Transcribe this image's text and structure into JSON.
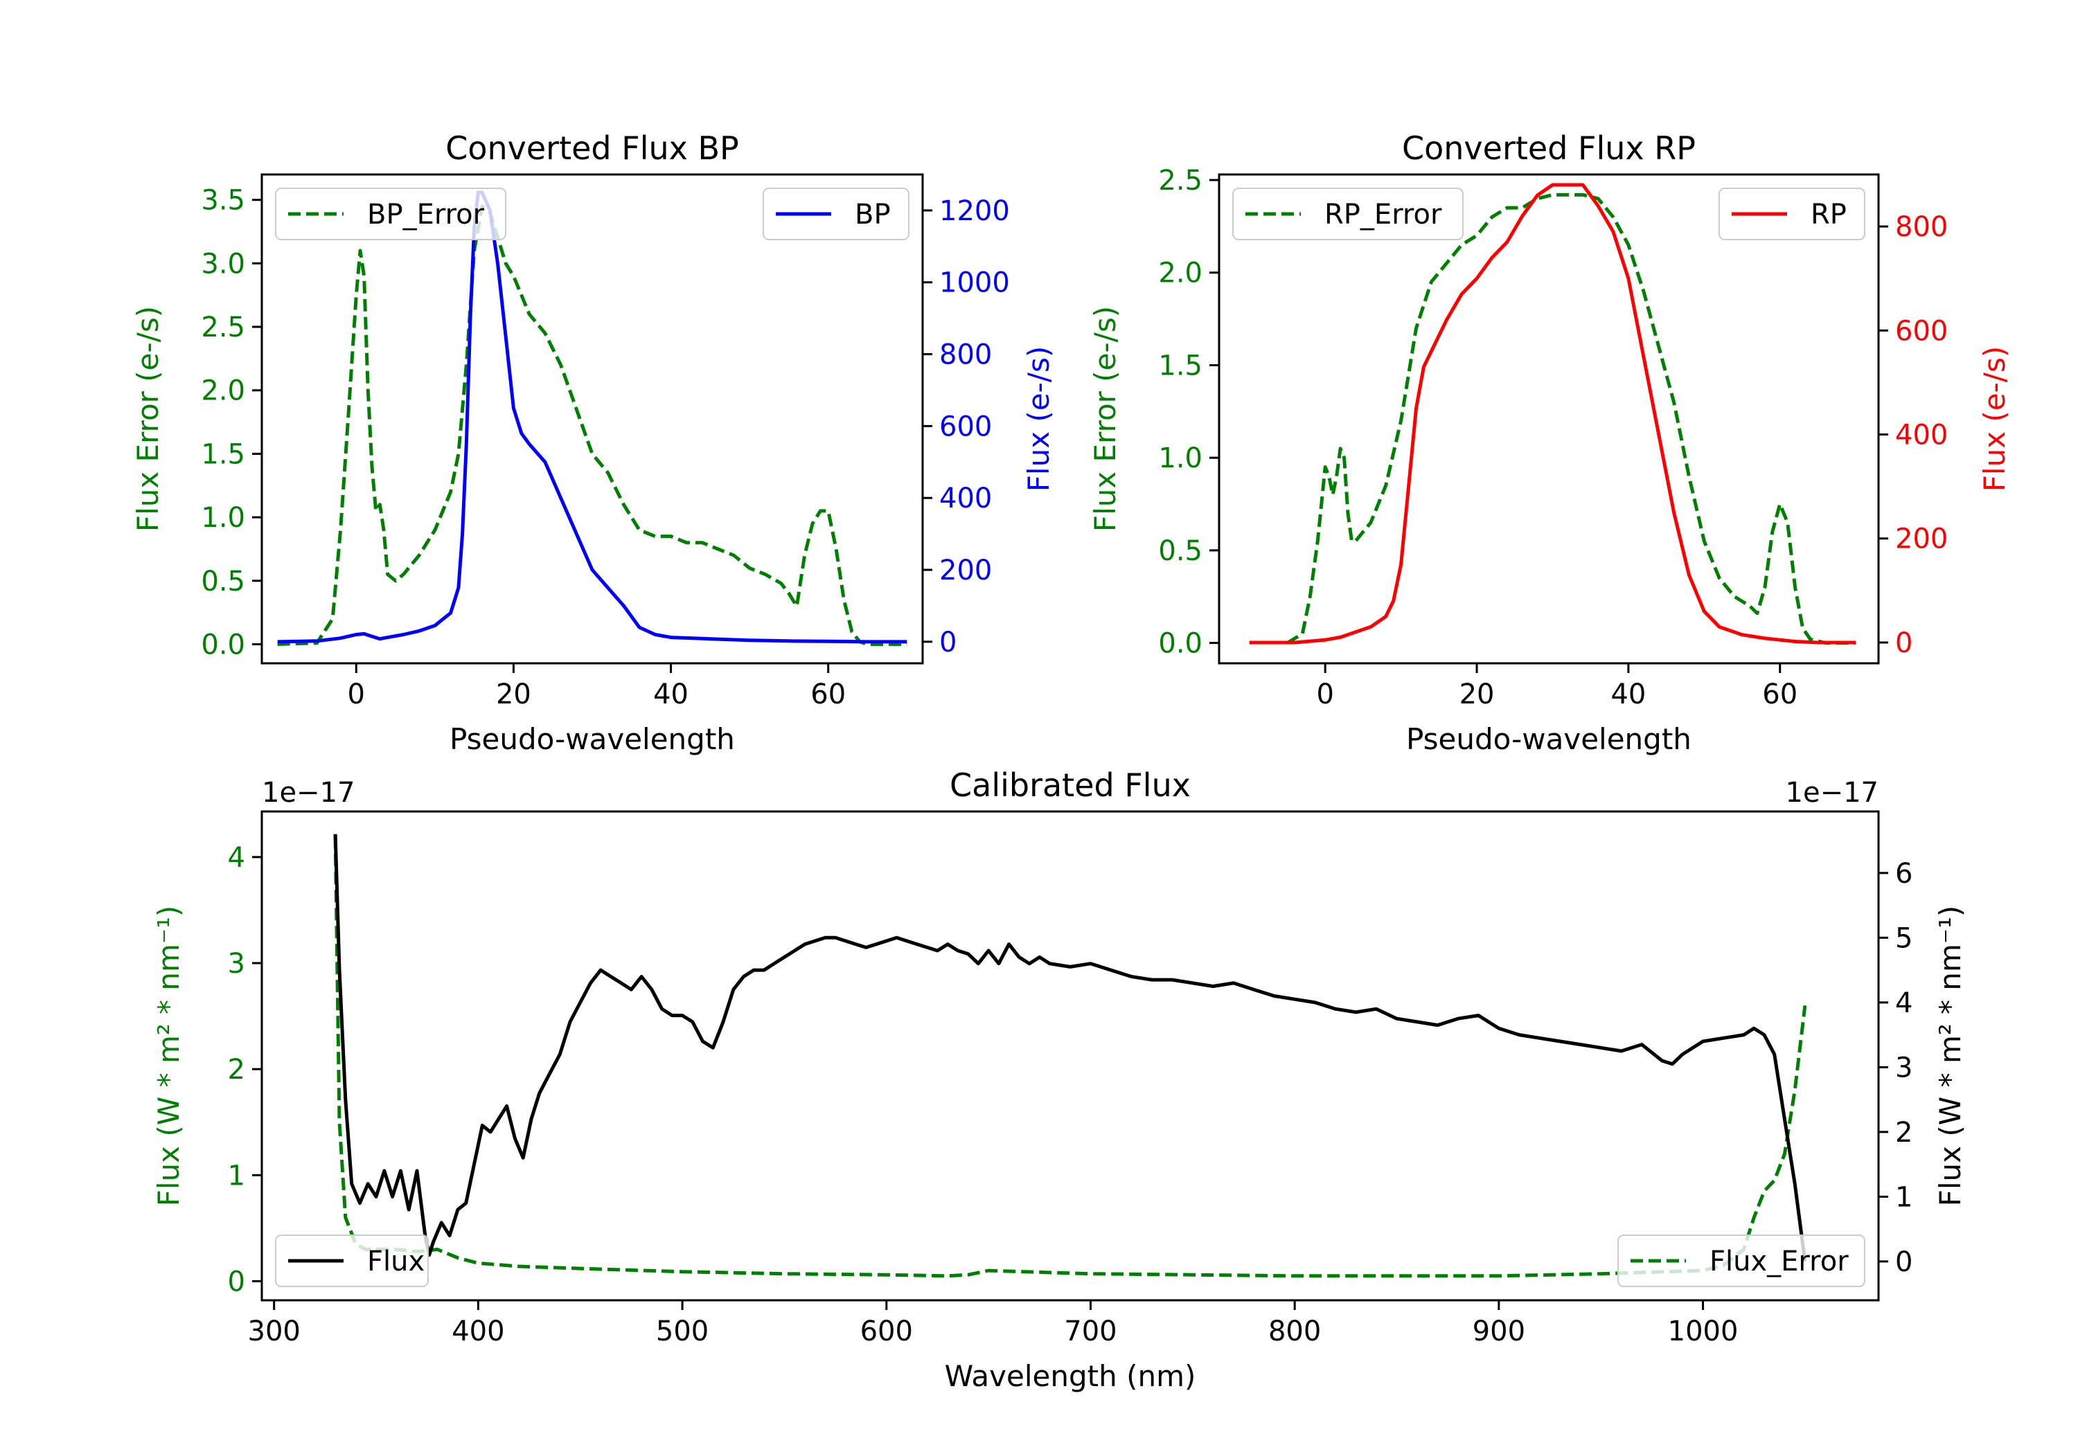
{
  "chart_data": [
    {
      "id": "bp",
      "type": "line",
      "title": "Converted Flux BP",
      "xlabel": "Pseudo-wavelength",
      "ylabel_left": "Flux Error (e-/s)",
      "ylabel_right": "Flux (e-/s)",
      "xlim": [
        -12,
        72
      ],
      "ylim_left": [
        -0.15,
        3.7
      ],
      "ylim_right": [
        -60,
        1300
      ],
      "xticks": [
        0,
        20,
        40,
        60
      ],
      "yticks_left": [
        "0.0",
        "0.5",
        "1.0",
        "1.5",
        "2.0",
        "2.5",
        "3.0",
        "3.5"
      ],
      "yticks_right": [
        "0",
        "200",
        "400",
        "600",
        "800",
        "1000",
        "1200"
      ],
      "legend_left": {
        "label": "BP_Error",
        "placement": "upper-left"
      },
      "legend_right": {
        "label": "BP",
        "placement": "upper-right"
      },
      "colors": {
        "error": "#008000",
        "flux": "#0000ff",
        "left_axis": "#008000",
        "right_axis": "#0000ff"
      },
      "series": [
        {
          "name": "BP_Error",
          "axis": "left",
          "style": "dashed",
          "x": [
            -10,
            -5,
            -3,
            -2,
            -1,
            0,
            0.5,
            1,
            1.5,
            2,
            2.5,
            3,
            3.5,
            4,
            5,
            6,
            8,
            10,
            12,
            13,
            14,
            15,
            16,
            17,
            18,
            19,
            20,
            22,
            24,
            26,
            28,
            30,
            32,
            34,
            36,
            38,
            40,
            42,
            44,
            46,
            48,
            50,
            52,
            54,
            55,
            56,
            57,
            58,
            59,
            60,
            61,
            62,
            63,
            64,
            65,
            70
          ],
          "y": [
            0.0,
            0.01,
            0.2,
            0.9,
            1.8,
            2.75,
            3.1,
            2.9,
            2.0,
            1.4,
            1.05,
            1.1,
            0.9,
            0.55,
            0.5,
            0.55,
            0.7,
            0.9,
            1.2,
            1.5,
            2.2,
            3.1,
            3.45,
            3.4,
            3.2,
            3.0,
            2.9,
            2.6,
            2.45,
            2.2,
            1.85,
            1.5,
            1.35,
            1.1,
            0.9,
            0.85,
            0.85,
            0.8,
            0.8,
            0.75,
            0.7,
            0.6,
            0.55,
            0.48,
            0.4,
            0.3,
            0.7,
            0.95,
            1.05,
            1.05,
            0.75,
            0.35,
            0.1,
            0.02,
            0.0,
            0.0
          ]
        },
        {
          "name": "BP",
          "axis": "right",
          "style": "solid",
          "x": [
            -10,
            -5,
            -2,
            0,
            1,
            2,
            3,
            4,
            6,
            8,
            10,
            12,
            13,
            13.5,
            14,
            14.5,
            15,
            15.5,
            16,
            17,
            18,
            19,
            20,
            21,
            22,
            24,
            26,
            28,
            30,
            32,
            34,
            36,
            38,
            40,
            45,
            50,
            55,
            60,
            65,
            70
          ],
          "y": [
            0,
            2,
            10,
            20,
            22,
            15,
            8,
            12,
            20,
            30,
            45,
            80,
            150,
            300,
            550,
            900,
            1150,
            1250,
            1250,
            1200,
            1050,
            850,
            650,
            580,
            550,
            500,
            400,
            300,
            200,
            150,
            100,
            40,
            20,
            12,
            8,
            4,
            2,
            1,
            0,
            0
          ]
        }
      ]
    },
    {
      "id": "rp",
      "type": "line",
      "title": "Converted Flux RP",
      "xlabel": "Pseudo-wavelength",
      "ylabel_left": "Flux Error (e-/s)",
      "ylabel_right": "Flux (e-/s)",
      "xlim": [
        -14,
        73
      ],
      "ylim_left": [
        -0.11,
        2.53
      ],
      "ylim_right": [
        -40,
        900
      ],
      "xticks": [
        0,
        20,
        40,
        60
      ],
      "yticks_left": [
        "0.0",
        "0.5",
        "1.0",
        "1.5",
        "2.0",
        "2.5"
      ],
      "yticks_right": [
        "0",
        "200",
        "400",
        "600",
        "800"
      ],
      "legend_left": {
        "label": "RP_Error",
        "placement": "upper-left"
      },
      "legend_right": {
        "label": "RP",
        "placement": "upper-right"
      },
      "colors": {
        "error": "#008000",
        "flux": "#ff0000",
        "left_axis": "#008000",
        "right_axis": "#ff0000"
      },
      "series": [
        {
          "name": "RP_Error",
          "axis": "left",
          "style": "dashed",
          "x": [
            -5,
            -3,
            -2,
            -1,
            0,
            0.5,
            1,
            1.5,
            2,
            2.5,
            3,
            3.5,
            4,
            5,
            6,
            8,
            10,
            12,
            14,
            16,
            18,
            20,
            22,
            24,
            26,
            28,
            30,
            32,
            34,
            36,
            38,
            40,
            42,
            44,
            46,
            48,
            50,
            52,
            54,
            56,
            57,
            58,
            59,
            60,
            61,
            62,
            63,
            64,
            66,
            70
          ],
          "y": [
            0.0,
            0.05,
            0.25,
            0.55,
            0.95,
            0.9,
            0.8,
            0.9,
            1.05,
            1.0,
            0.7,
            0.55,
            0.55,
            0.6,
            0.65,
            0.85,
            1.2,
            1.7,
            1.95,
            2.05,
            2.15,
            2.2,
            2.3,
            2.35,
            2.35,
            2.4,
            2.42,
            2.42,
            2.42,
            2.4,
            2.3,
            2.15,
            1.9,
            1.6,
            1.3,
            0.9,
            0.55,
            0.35,
            0.25,
            0.2,
            0.16,
            0.3,
            0.6,
            0.75,
            0.65,
            0.3,
            0.08,
            0.02,
            0.0,
            0.0
          ]
        },
        {
          "name": "RP",
          "axis": "right",
          "style": "solid",
          "x": [
            -10,
            -4,
            0,
            2,
            4,
            6,
            8,
            9,
            10,
            11,
            12,
            13,
            14,
            16,
            18,
            20,
            22,
            24,
            26,
            28,
            30,
            32,
            34,
            36,
            38,
            40,
            42,
            44,
            46,
            48,
            50,
            52,
            55,
            58,
            60,
            62,
            65,
            70
          ],
          "y": [
            0,
            0,
            5,
            10,
            20,
            30,
            50,
            80,
            150,
            300,
            450,
            530,
            560,
            620,
            670,
            700,
            740,
            770,
            820,
            860,
            880,
            880,
            880,
            840,
            790,
            700,
            550,
            400,
            250,
            130,
            60,
            30,
            15,
            8,
            5,
            2,
            0,
            0
          ]
        }
      ]
    },
    {
      "id": "cal",
      "type": "line",
      "title": "Calibrated Flux",
      "xlabel": "Wavelength (nm)",
      "ylabel_left": "Flux (W * m² * nm⁻¹)",
      "ylabel_right": "Flux (W * m² * nm⁻¹)",
      "offset_left": "1e−17",
      "offset_right": "1e−17",
      "xlim": [
        294,
        1086
      ],
      "ylim_left": [
        -0.18,
        4.43
      ],
      "ylim_right": [
        -0.6,
        6.95
      ],
      "xticks": [
        300,
        400,
        500,
        600,
        700,
        800,
        900,
        1000
      ],
      "yticks_left": [
        "0",
        "1",
        "2",
        "3",
        "4"
      ],
      "yticks_right": [
        "0",
        "1",
        "2",
        "3",
        "4",
        "5",
        "6"
      ],
      "legend_left": {
        "label": "Flux",
        "placement": "lower-left"
      },
      "legend_right": {
        "label": "Flux_Error",
        "placement": "lower-right"
      },
      "colors": {
        "error": "#008000",
        "flux": "#000000",
        "left_axis": "#008000",
        "right_axis": "#000000"
      },
      "series": [
        {
          "name": "Flux_Error",
          "axis": "left",
          "style": "dashed",
          "x": [
            330,
            332,
            335,
            340,
            345,
            350,
            360,
            370,
            380,
            390,
            400,
            420,
            450,
            500,
            550,
            600,
            630,
            640,
            650,
            700,
            750,
            800,
            850,
            900,
            950,
            1000,
            1010,
            1020,
            1025,
            1030,
            1035,
            1040,
            1045,
            1050
          ],
          "y": [
            4.2,
            1.5,
            0.6,
            0.35,
            0.3,
            0.3,
            0.3,
            0.28,
            0.3,
            0.22,
            0.17,
            0.14,
            0.12,
            0.09,
            0.07,
            0.06,
            0.05,
            0.06,
            0.1,
            0.07,
            0.06,
            0.05,
            0.05,
            0.05,
            0.07,
            0.1,
            0.15,
            0.3,
            0.6,
            0.85,
            0.95,
            1.2,
            1.8,
            2.6
          ]
        },
        {
          "name": "Flux",
          "axis": "right",
          "style": "solid",
          "x": [
            330,
            332,
            335,
            338,
            342,
            346,
            350,
            354,
            358,
            362,
            366,
            370,
            374,
            376,
            378,
            382,
            386,
            390,
            394,
            398,
            402,
            406,
            410,
            414,
            418,
            422,
            426,
            430,
            435,
            440,
            445,
            450,
            455,
            460,
            465,
            470,
            475,
            480,
            485,
            490,
            495,
            500,
            505,
            510,
            515,
            520,
            525,
            530,
            535,
            540,
            545,
            550,
            555,
            560,
            565,
            570,
            575,
            580,
            585,
            590,
            595,
            600,
            605,
            610,
            615,
            620,
            625,
            630,
            635,
            640,
            645,
            650,
            655,
            660,
            665,
            670,
            675,
            680,
            690,
            700,
            710,
            720,
            730,
            740,
            750,
            760,
            770,
            780,
            790,
            800,
            810,
            820,
            830,
            840,
            850,
            860,
            870,
            880,
            890,
            900,
            910,
            920,
            930,
            940,
            950,
            960,
            970,
            980,
            985,
            990,
            1000,
            1010,
            1020,
            1025,
            1030,
            1035,
            1040,
            1045,
            1050
          ],
          "y": [
            6.6,
            4.5,
            2.5,
            1.2,
            0.9,
            1.2,
            1.0,
            1.4,
            1.0,
            1.4,
            0.8,
            1.4,
            0.4,
            0.1,
            0.3,
            0.6,
            0.4,
            0.8,
            0.9,
            1.5,
            2.1,
            2.0,
            2.2,
            2.4,
            1.9,
            1.6,
            2.2,
            2.6,
            2.9,
            3.2,
            3.7,
            4.0,
            4.3,
            4.5,
            4.4,
            4.3,
            4.2,
            4.4,
            4.2,
            3.9,
            3.8,
            3.8,
            3.7,
            3.4,
            3.3,
            3.7,
            4.2,
            4.4,
            4.5,
            4.5,
            4.6,
            4.7,
            4.8,
            4.9,
            4.95,
            5.0,
            5.0,
            4.95,
            4.9,
            4.85,
            4.9,
            4.95,
            5.0,
            4.95,
            4.9,
            4.85,
            4.8,
            4.9,
            4.8,
            4.75,
            4.6,
            4.8,
            4.6,
            4.9,
            4.7,
            4.6,
            4.7,
            4.6,
            4.55,
            4.6,
            4.5,
            4.4,
            4.35,
            4.35,
            4.3,
            4.25,
            4.3,
            4.2,
            4.1,
            4.05,
            4.0,
            3.9,
            3.85,
            3.9,
            3.75,
            3.7,
            3.65,
            3.75,
            3.8,
            3.6,
            3.5,
            3.45,
            3.4,
            3.35,
            3.3,
            3.25,
            3.35,
            3.1,
            3.05,
            3.2,
            3.4,
            3.45,
            3.5,
            3.6,
            3.5,
            3.2,
            2.2,
            1.2,
            0.0
          ]
        }
      ]
    }
  ]
}
